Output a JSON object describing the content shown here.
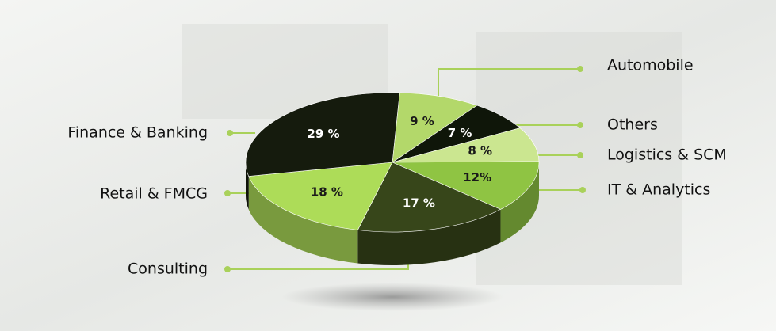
{
  "chart_data": {
    "type": "pie",
    "categories": [
      "Automobile",
      "Others",
      "Logistics & SCM",
      "IT & Analytics",
      "Consulting",
      "Retail & FMCG",
      "Finance & Banking"
    ],
    "values": [
      9,
      7,
      8,
      12,
      17,
      18,
      29
    ],
    "value_labels": [
      "9 %",
      "7 %",
      "8 %",
      "12%",
      "17 %",
      "18 %",
      "29 %"
    ],
    "colors": [
      "#b3d86a",
      "#0f1609",
      "#cbe690",
      "#8fc443",
      "#37461a",
      "#addc58",
      "#151b0d"
    ]
  }
}
